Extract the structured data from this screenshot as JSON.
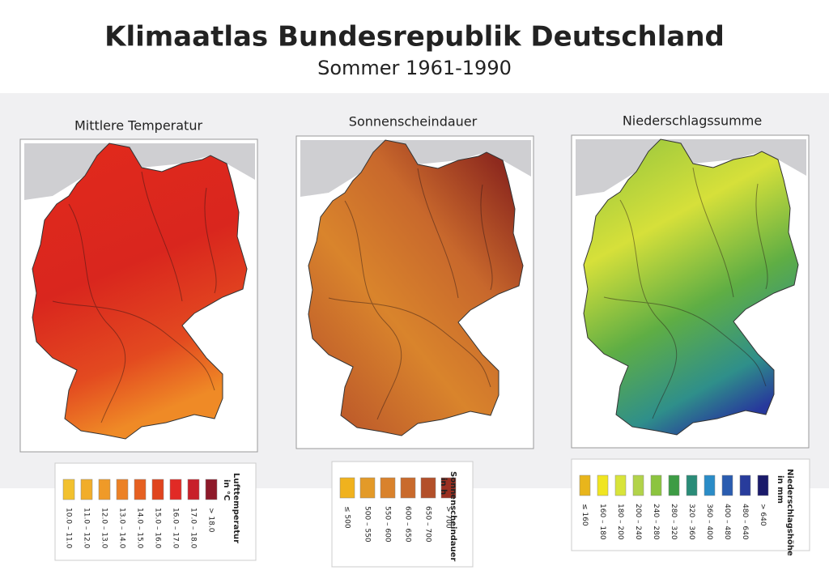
{
  "title": "Klimaatlas Bundesrepublik Deutschland",
  "subtitle": "Sommer 1961-1990",
  "maps": [
    {
      "title": "Mittlere Temperatur",
      "legend": {
        "title": "Lufttemperatur",
        "unit": "in °C",
        "classes": [
          {
            "label": "10.0 – 11.0",
            "color": "#f2c12e"
          },
          {
            "label": "11.0 – 12.0",
            "color": "#f1ad2a"
          },
          {
            "label": "12.0 – 13.0",
            "color": "#ef9a28"
          },
          {
            "label": "13.0 – 14.0",
            "color": "#ec8125"
          },
          {
            "label": "14.0 – 15.0",
            "color": "#e66021"
          },
          {
            "label": "15.0 – 16.0",
            "color": "#e0441e"
          },
          {
            "label": "16.0 – 17.0",
            "color": "#e12a25"
          },
          {
            "label": "17.0 – 18.0",
            "color": "#c8202a"
          },
          {
            "label": "> 18.0",
            "color": "#8e1a2a"
          }
        ]
      }
    },
    {
      "title": "Sonnenscheindauer",
      "legend": {
        "title": "Sonnenscheindauer",
        "unit": "in h",
        "classes": [
          {
            "label": "≤ 500",
            "color": "#f0b21e"
          },
          {
            "label": "500 – 550",
            "color": "#e39a28"
          },
          {
            "label": "550 – 600",
            "color": "#d9822c"
          },
          {
            "label": "600 – 650",
            "color": "#c96a2c"
          },
          {
            "label": "650 – 700",
            "color": "#b3502a"
          },
          {
            "label": "> 700",
            "color": "#9b3022"
          }
        ]
      }
    },
    {
      "title": "Niederschlagssumme",
      "legend": {
        "title": "Niederschlagshöhe",
        "unit": "in mm",
        "classes": [
          {
            "label": "≤ 160",
            "color": "#e8b51c"
          },
          {
            "label": "160 – 180",
            "color": "#f0e521"
          },
          {
            "label": "180 – 200",
            "color": "#d8e43a"
          },
          {
            "label": "200 – 240",
            "color": "#b2d34a"
          },
          {
            "label": "240 – 280",
            "color": "#8cc43f"
          },
          {
            "label": "280 – 320",
            "color": "#3d9c45"
          },
          {
            "label": "320 – 360",
            "color": "#2a8c78"
          },
          {
            "label": "360 – 400",
            "color": "#2a8cc7"
          },
          {
            "label": "400 – 480",
            "color": "#2a5cb0"
          },
          {
            "label": "480 – 640",
            "color": "#283c9c"
          },
          {
            "label": "> 640",
            "color": "#1a1a6a"
          }
        ]
      }
    }
  ]
}
